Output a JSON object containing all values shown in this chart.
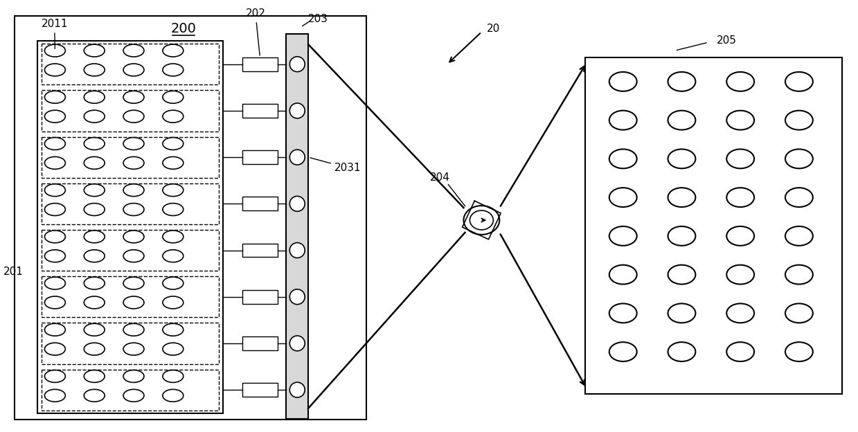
{
  "bg_color": "#ffffff",
  "line_color": "#000000",
  "label_200": "200",
  "label_20": "20",
  "label_201": "201",
  "label_2011": "2011",
  "label_202": "202",
  "label_203": "203",
  "label_2031": "2031",
  "label_204": "204",
  "label_205": "205",
  "font_size_labels": 11,
  "font_size_title": 13
}
